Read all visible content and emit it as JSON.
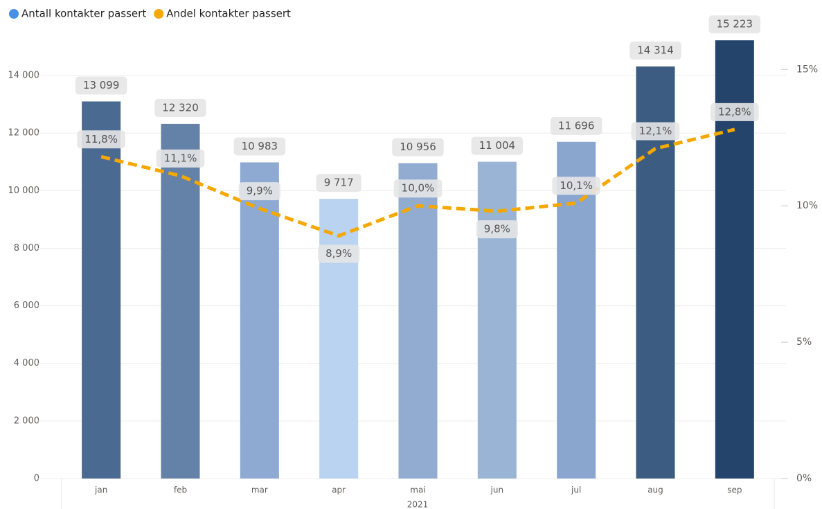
{
  "chart_data": {
    "type": "bar_line",
    "x_label": "2021",
    "categories": [
      "jan",
      "feb",
      "mar",
      "apr",
      "mai",
      "jun",
      "jul",
      "aug",
      "sep"
    ],
    "series": [
      {
        "name": "Antall kontakter passert",
        "color": "#4a90e2",
        "colors": [
          "#4a6a91",
          "#6482a8",
          "#8eaad3",
          "#b9d3f0",
          "#91acd0",
          "#9ab4d6",
          "#8aa6cf",
          "#3c5c82",
          "#25446b"
        ],
        "values": [
          13099,
          12320,
          10983,
          9717,
          10956,
          11004,
          11696,
          14314,
          15223
        ],
        "value_labels": [
          "13 099",
          "12 320",
          "10 983",
          "9 717",
          "10 956",
          "11 004",
          "11 696",
          "14 314",
          "15 223"
        ]
      },
      {
        "name": "Andel kontakter passert",
        "color": "#f5a800",
        "axis": "y2",
        "values": [
          11.8,
          11.1,
          9.9,
          8.9,
          10.0,
          9.8,
          10.1,
          12.1,
          12.8
        ],
        "value_labels": [
          "11,8%",
          "11,1%",
          "9,9%",
          "8,9%",
          "10,0%",
          "9,8%",
          "10,1%",
          "12,1%",
          "12,8%"
        ]
      }
    ],
    "ylim": [
      0,
      15300
    ],
    "yticks": [
      0,
      {
        "value": 2000,
        "label": "2 000"
      },
      {
        "value": 4000,
        "label": "4 000"
      },
      {
        "value": 6000,
        "label": "6 000"
      },
      {
        "value": 8000,
        "label": "8 000"
      },
      {
        "value": 10000,
        "label": "10 000"
      },
      {
        "value": 12000,
        "label": "12 000"
      },
      {
        "value": 14000,
        "label": "14 000"
      }
    ],
    "y2lim": [
      0,
      16.15
    ],
    "y2ticks": [
      {
        "value": 0,
        "label": "0%"
      },
      {
        "value": 5,
        "label": "5%"
      },
      {
        "value": 10,
        "label": "10%"
      },
      {
        "value": 15,
        "label": "15%"
      }
    ],
    "grid": true
  }
}
